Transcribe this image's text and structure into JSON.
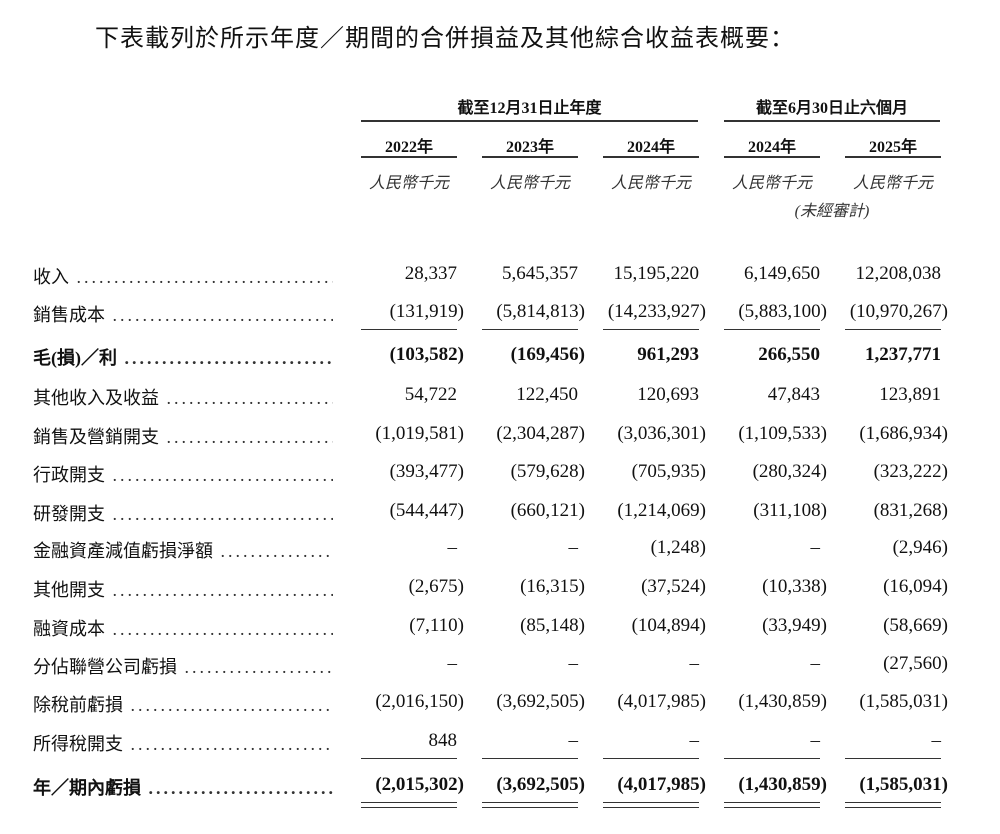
{
  "title": "下表載列於所示年度／期間的合併損益及其他綜合收益表概要：",
  "header": {
    "group_annual": "截至12月31日止年度",
    "group_interim": "截至6月30日止六個月",
    "years": [
      "2022年",
      "2023年",
      "2024年",
      "2024年",
      "2025年"
    ],
    "unit": "人民幣千元",
    "unaudited": "(未經審計)"
  },
  "rows": [
    {
      "label": "收入",
      "values": [
        "28,337",
        "5,645,357",
        "15,195,220",
        "6,149,650",
        "12,208,038"
      ],
      "bold": false
    },
    {
      "label": "銷售成本",
      "values": [
        "(131,919)",
        "(5,814,813)",
        "(14,233,927)",
        "(5,883,100)",
        "(10,970,267)"
      ],
      "bold": false
    },
    {
      "label": "毛(損)／利",
      "values": [
        "(103,582)",
        "(169,456)",
        "961,293",
        "266,550",
        "1,237,771"
      ],
      "bold": true
    },
    {
      "label": "其他收入及收益",
      "values": [
        "54,722",
        "122,450",
        "120,693",
        "47,843",
        "123,891"
      ],
      "bold": false
    },
    {
      "label": "銷售及營銷開支",
      "values": [
        "(1,019,581)",
        "(2,304,287)",
        "(3,036,301)",
        "(1,109,533)",
        "(1,686,934)"
      ],
      "bold": false
    },
    {
      "label": "行政開支",
      "values": [
        "(393,477)",
        "(579,628)",
        "(705,935)",
        "(280,324)",
        "(323,222)"
      ],
      "bold": false
    },
    {
      "label": "研發開支",
      "values": [
        "(544,447)",
        "(660,121)",
        "(1,214,069)",
        "(311,108)",
        "(831,268)"
      ],
      "bold": false
    },
    {
      "label": "金融資產減值虧損淨額",
      "values": [
        "–",
        "–",
        "(1,248)",
        "–",
        "(2,946)"
      ],
      "bold": false
    },
    {
      "label": "其他開支",
      "values": [
        "(2,675)",
        "(16,315)",
        "(37,524)",
        "(10,338)",
        "(16,094)"
      ],
      "bold": false
    },
    {
      "label": "融資成本",
      "values": [
        "(7,110)",
        "(85,148)",
        "(104,894)",
        "(33,949)",
        "(58,669)"
      ],
      "bold": false
    },
    {
      "label": "分佔聯營公司虧損",
      "values": [
        "–",
        "–",
        "–",
        "–",
        "(27,560)"
      ],
      "bold": false
    },
    {
      "label": "除稅前虧損",
      "values": [
        "(2,016,150)",
        "(3,692,505)",
        "(4,017,985)",
        "(1,430,859)",
        "(1,585,031)"
      ],
      "bold": false
    },
    {
      "label": "所得稅開支",
      "values": [
        "848",
        "–",
        "–",
        "–",
        "–"
      ],
      "bold": false
    },
    {
      "label": "年／期內虧損",
      "values": [
        "(2,015,302)",
        "(3,692,505)",
        "(4,017,985)",
        "(1,430,859)",
        "(1,585,031)"
      ],
      "bold": true
    }
  ]
}
